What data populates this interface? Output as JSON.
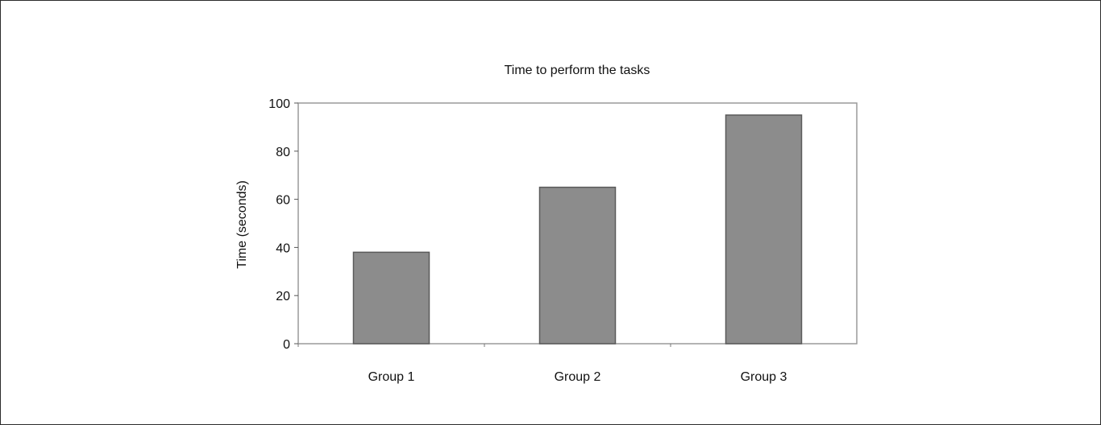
{
  "chart_data": {
    "type": "bar",
    "title": "Time to perform the tasks",
    "xlabel": "",
    "ylabel": "Time (seconds)",
    "categories": [
      "Group 1",
      "Group 2",
      "Group 3"
    ],
    "values": [
      38,
      65,
      95
    ],
    "ylim": [
      0,
      100
    ],
    "yticks": [
      0,
      20,
      40,
      60,
      80,
      100
    ],
    "ytick_labels": [
      "0",
      "20",
      "40",
      "60",
      "80",
      "100"
    ],
    "grid": false,
    "legend": "none",
    "bar_color": "#8c8c8c",
    "bar_edge_color": "#5a5a5a"
  }
}
